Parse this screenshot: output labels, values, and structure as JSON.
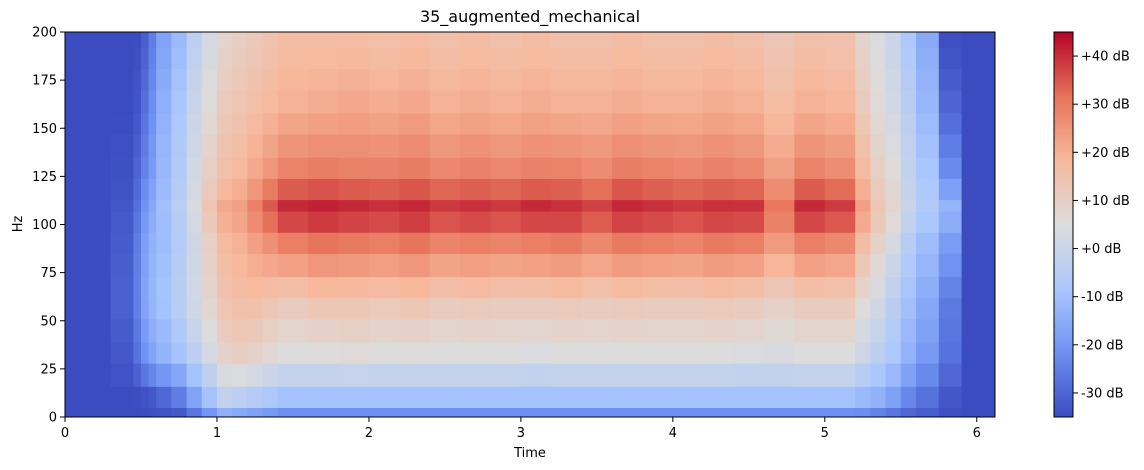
{
  "chart_data": {
    "type": "heatmap",
    "title": "35_augmented_mechanical",
    "xlabel": "Time",
    "ylabel": "Hz",
    "xlim": [
      0,
      6.12
    ],
    "ylim": [
      0,
      200
    ],
    "x_ticks": [
      {
        "value": 0,
        "label": "0"
      },
      {
        "value": 1,
        "label": "1"
      },
      {
        "value": 2,
        "label": "2"
      },
      {
        "value": 3,
        "label": "3"
      },
      {
        "value": 4,
        "label": "4"
      },
      {
        "value": 5,
        "label": "5"
      },
      {
        "value": 6,
        "label": "6"
      }
    ],
    "y_ticks": [
      {
        "value": 0,
        "label": "0"
      },
      {
        "value": 25,
        "label": "25"
      },
      {
        "value": 50,
        "label": "50"
      },
      {
        "value": 75,
        "label": "75"
      },
      {
        "value": 100,
        "label": "100"
      },
      {
        "value": 125,
        "label": "125"
      },
      {
        "value": 150,
        "label": "150"
      },
      {
        "value": 175,
        "label": "175"
      },
      {
        "value": 200,
        "label": "200"
      }
    ],
    "colorbar": {
      "range": [
        -35,
        45
      ],
      "unit": "dB",
      "ticks": [
        {
          "value": 40,
          "label": "+40 dB"
        },
        {
          "value": 30,
          "label": "+30 dB"
        },
        {
          "value": 20,
          "label": "+20 dB"
        },
        {
          "value": 10,
          "label": "+10 dB"
        },
        {
          "value": 0,
          "label": "+0 dB"
        },
        {
          "value": -10,
          "label": "-10 dB"
        },
        {
          "value": -20,
          "label": "-20 dB"
        },
        {
          "value": -30,
          "label": "-30 dB"
        }
      ]
    },
    "colormap": "coolwarm",
    "colormap_stops": [
      "#3b4cc0",
      "#6f92f3",
      "#aac7fd",
      "#dddcdc",
      "#f7b89c",
      "#e7745b",
      "#b40426"
    ],
    "frequency_bins": [
      0,
      5,
      16,
      28,
      39,
      51,
      62,
      73,
      85,
      96,
      107,
      113,
      124,
      135,
      147,
      158,
      170,
      181,
      192
    ],
    "time_bins": [
      0,
      0.3,
      0.45,
      0.5,
      0.55,
      0.6,
      0.7,
      0.8,
      0.9,
      1.0,
      1.1,
      1.2,
      1.3,
      1.4,
      1.6,
      1.8,
      2.0,
      2.2,
      2.4,
      2.6,
      2.8,
      3.0,
      3.2,
      3.4,
      3.6,
      3.8,
      4.0,
      4.2,
      4.4,
      4.6,
      4.8,
      5.0,
      5.2,
      5.3,
      5.4,
      5.5,
      5.6,
      5.75,
      5.9,
      6.12
    ],
    "db_matrix": [
      [
        -35,
        -35,
        -35,
        -35,
        -35,
        -35,
        -35,
        -35,
        -35
      ],
      [
        -35,
        -35,
        -33,
        -31,
        -32,
        -33,
        -34,
        -35,
        -35
      ],
      [
        -35,
        -35,
        -28,
        -25,
        -26,
        -28,
        -30,
        -33,
        -35
      ],
      [
        -35,
        -34,
        -22,
        -17,
        -19,
        -21,
        -24,
        -28,
        -32
      ],
      [
        -35,
        -33,
        -18,
        -12,
        -14,
        -16,
        -19,
        -22,
        -26
      ],
      [
        -35,
        -30,
        -14,
        -9,
        -11,
        -10,
        -12,
        -14,
        -18
      ],
      [
        -35,
        -26,
        -10,
        -4,
        -6,
        -4,
        -6,
        -8,
        -12
      ],
      [
        -30,
        -18,
        -4,
        2,
        1,
        4,
        2,
        0,
        -4
      ],
      [
        -24,
        -10,
        2,
        8,
        10,
        14,
        10,
        6,
        2
      ],
      [
        -18,
        -2,
        8,
        14,
        18,
        22,
        16,
        12,
        8
      ],
      [
        -20,
        -4,
        10,
        16,
        20,
        24,
        18,
        14,
        10
      ],
      [
        -22,
        -6,
        8,
        16,
        24,
        30,
        22,
        16,
        12
      ],
      [
        -24,
        -8,
        6,
        14,
        28,
        36,
        26,
        18,
        14
      ],
      [
        -26,
        -10,
        4,
        12,
        32,
        42,
        30,
        20,
        16
      ],
      [
        -26,
        -10,
        4,
        14,
        34,
        43,
        31,
        21,
        16
      ],
      [
        -26,
        -10,
        5,
        14,
        33,
        42,
        30,
        22,
        16
      ],
      [
        -26,
        -10,
        4,
        13,
        32,
        41,
        30,
        21,
        15
      ],
      [
        -26,
        -10,
        4,
        14,
        34,
        42,
        31,
        22,
        16
      ],
      [
        -26,
        -10,
        4,
        12,
        31,
        40,
        29,
        20,
        15
      ],
      [
        -26,
        -10,
        4,
        13,
        32,
        41,
        30,
        21,
        16
      ],
      [
        -26,
        -10,
        4,
        12,
        31,
        40,
        29,
        20,
        15
      ],
      [
        -26,
        -10,
        3,
        12,
        32,
        42,
        30,
        21,
        16
      ],
      [
        -26,
        -10,
        4,
        13,
        33,
        41,
        30,
        20,
        15
      ],
      [
        -26,
        -10,
        4,
        12,
        30,
        39,
        28,
        20,
        15
      ],
      [
        -26,
        -10,
        4,
        13,
        33,
        42,
        31,
        21,
        16
      ],
      [
        -26,
        -10,
        4,
        12,
        32,
        41,
        30,
        20,
        15
      ],
      [
        -26,
        -10,
        4,
        12,
        31,
        40,
        29,
        20,
        15
      ],
      [
        -26,
        -10,
        4,
        13,
        33,
        41,
        30,
        21,
        16
      ],
      [
        -26,
        -10,
        3,
        12,
        32,
        41,
        29,
        20,
        15
      ],
      [
        -26,
        -10,
        3,
        10,
        26,
        32,
        24,
        17,
        13
      ],
      [
        -26,
        -10,
        4,
        12,
        32,
        42,
        30,
        20,
        15
      ],
      [
        -26,
        -10,
        4,
        12,
        30,
        40,
        28,
        19,
        14
      ],
      [
        -26,
        -12,
        0,
        6,
        18,
        24,
        18,
        12,
        8
      ],
      [
        -28,
        -14,
        -4,
        2,
        10,
        14,
        10,
        6,
        4
      ],
      [
        -30,
        -18,
        -8,
        -4,
        4,
        8,
        6,
        2,
        0
      ],
      [
        -32,
        -24,
        -14,
        -10,
        -4,
        0,
        -2,
        -4,
        -8
      ],
      [
        -33,
        -28,
        -20,
        -16,
        -10,
        -6,
        -8,
        -12,
        -16
      ],
      [
        -35,
        -33,
        -28,
        -26,
        -18,
        -12,
        -22,
        -30,
        -35
      ],
      [
        -35,
        -35,
        -35,
        -35,
        -35,
        -35,
        -35,
        -35,
        -35
      ]
    ]
  }
}
